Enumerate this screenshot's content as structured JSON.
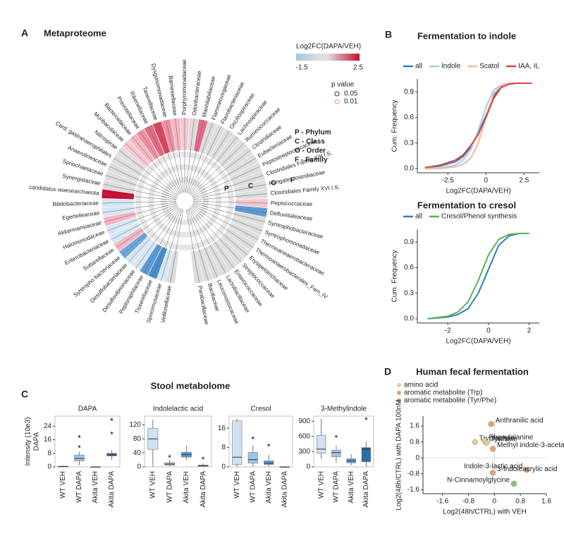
{
  "chart_data": [
    {
      "type": "tree",
      "panel": "A",
      "title": "Metaproteome",
      "families": [
        {
          "name": "Veillonellaceae"
        },
        {
          "name": "Sporomusaceae",
          "color": "#d6e6f5"
        },
        {
          "name": "Tisserellaceae",
          "color": "#4a8ccc"
        },
        {
          "name": "Peptoniphilaceae",
          "color": "#5b9bd5"
        },
        {
          "name": "Desulfovibrionaceae",
          "color": "#d6e6f5"
        },
        {
          "name": "Desulfobacteriaceae",
          "color": "#d6e6f5"
        },
        {
          "name": "Syntropho bacteriaceae",
          "color": "#6fa8dc"
        },
        {
          "name": "Suttarellaceae",
          "color": "#f4b6c2"
        },
        {
          "name": "Enterobacteriaceae",
          "color": "#d6e6f5"
        },
        {
          "name": "Halomonodaceae",
          "color": "#d6e6f5"
        },
        {
          "name": "Akkermansiaceae",
          "color": "#f4b6c2"
        },
        {
          "name": "Egertelleaceae",
          "color": "#d6e6f5"
        },
        {
          "name": "Bilidobacteriaceae",
          "color": "#d6e6f5"
        },
        {
          "name": "candidatus woesearchaeota",
          "color": "#c8102e"
        },
        {
          "name": "Synergistaceae"
        },
        {
          "name": "Spriochaetaceae"
        },
        {
          "name": "Anaerolineaceae"
        },
        {
          "name": "Card. gastranaerophilales"
        },
        {
          "name": "Nitrospirae"
        },
        {
          "name": "Muribaculaceae",
          "color": "#f4c7d0"
        },
        {
          "name": "Bacteroidaceae",
          "color": "#f4b6c2"
        },
        {
          "name": "Prevotellaceae",
          "color": "#ee8fa3"
        },
        {
          "name": "Rikenellaceae",
          "color": "#e06c86"
        },
        {
          "name": "Tanerellaceae",
          "color": "#d9475f"
        },
        {
          "name": "Dysgonomonadaceae",
          "color": "#ee8fa3"
        },
        {
          "name": "Barnesiellaceae",
          "color": "#f4b6c2"
        },
        {
          "name": "Porphyromonadaceae",
          "color": "#f4c7d0"
        },
        {
          "name": "Odoribacteraceae"
        },
        {
          "name": "Marinilabiliaceae",
          "color": "#e06c86"
        },
        {
          "name": "Flammeovirgaceae"
        },
        {
          "name": "Flavobacteriaceae"
        },
        {
          "name": "Oscillospiraceae"
        },
        {
          "name": "Lachnospiraceae"
        },
        {
          "name": "Ruminococcaceae"
        },
        {
          "name": "Clostridiaceae"
        },
        {
          "name": "Eubacteriaceae"
        },
        {
          "name": "Peptostreptococcaceae"
        },
        {
          "name": "Clostridiales Family XIII I.S."
        },
        {
          "name": "Hungateiclostridiaceae"
        },
        {
          "name": "Clostridiales Family XVI I.S."
        },
        {
          "name": "Peptococcaceae",
          "color": "#f4c7d0"
        },
        {
          "name": "Defluviitaleaceae",
          "color": "#5b9bd5"
        },
        {
          "name": "Syntrophobacteraceae"
        },
        {
          "name": "Syntrophomonadaceae"
        },
        {
          "name": "Thermoaneaerobacteraceae"
        },
        {
          "name": "Thermoanaerobacterales_Fam_IV"
        },
        {
          "name": "Erysipelotrichaceae"
        },
        {
          "name": "Streptococcaceae"
        },
        {
          "name": "Enterococcaceae"
        },
        {
          "name": "Lactobacillaceae"
        },
        {
          "name": "Leuconostocaceae"
        },
        {
          "name": "Bacillaceae"
        },
        {
          "name": "Panibacillaceae"
        }
      ],
      "colorbar": {
        "title": "Log2FC(DAPA/VEH)",
        "min": -1.5,
        "max": 2.5
      },
      "pvalue": {
        "title": "p value",
        "levels": [
          0.05,
          0.01
        ],
        "colors": [
          "#333333",
          "#f08aa0"
        ]
      },
      "rank_key": [
        "P - Phylum",
        "C - Class",
        "O - Order",
        "F - Family"
      ],
      "rank_letters": [
        "P",
        "C",
        "O",
        "F"
      ]
    },
    {
      "type": "line",
      "panel": "B",
      "title": "Fermentation to indole",
      "x_label": "Log2FC(DAPA/VEH)",
      "y_label": "Cum. Frequency",
      "x": [
        -4,
        -3,
        -2,
        -1.5,
        -1,
        -0.5,
        0,
        0.5,
        1,
        1.5,
        2,
        3
      ],
      "series": [
        {
          "name": "all",
          "color": "#2f7fc1",
          "values": [
            0.01,
            0.03,
            0.08,
            0.14,
            0.25,
            0.42,
            0.62,
            0.85,
            0.96,
            0.99,
            1,
            1
          ]
        },
        {
          "name": "Indole",
          "color": "#a9cbe8",
          "values": [
            0,
            0.01,
            0.04,
            0.1,
            0.22,
            0.45,
            0.72,
            0.92,
            0.98,
            1,
            1,
            1
          ]
        },
        {
          "name": "Scatol",
          "color": "#f3b7a4",
          "values": [
            0,
            0,
            0.02,
            0.05,
            0.12,
            0.3,
            0.6,
            0.88,
            0.97,
            1,
            1,
            1
          ]
        },
        {
          "name": "IAA, IL",
          "color": "#d9453a",
          "values": [
            0.01,
            0.04,
            0.1,
            0.16,
            0.27,
            0.4,
            0.6,
            0.82,
            0.95,
            0.99,
            1,
            1
          ]
        }
      ],
      "xlim": [
        -4.5,
        3.5
      ],
      "xticks": [
        -2.5,
        0,
        2.5
      ],
      "ylim": [
        -0.05,
        1.05
      ],
      "yticks": [
        {
          "value": 0,
          "label": "0.0"
        },
        0.3,
        0.6,
        0.9
      ]
    },
    {
      "type": "line",
      "title": "Fermentation to cresol",
      "x_label": "Log2FC(DAPA/VEH)",
      "y_label": "Cum. Frequency",
      "x": [
        -3,
        -2,
        -1.5,
        -1,
        -0.5,
        0,
        0.5,
        1,
        1.5,
        2
      ],
      "series": [
        {
          "name": "all",
          "color": "#2f7fc1",
          "values": [
            0,
            0.02,
            0.05,
            0.12,
            0.3,
            0.58,
            0.86,
            0.97,
            1,
            1
          ]
        },
        {
          "name": "Cresol/Phenol synthesis",
          "color": "#59b34d",
          "values": [
            0,
            0.03,
            0.08,
            0.2,
            0.45,
            0.75,
            0.93,
            0.99,
            1,
            1
          ]
        }
      ],
      "xlim": [
        -3.5,
        2.5
      ],
      "xticks": [
        -2,
        0,
        2
      ],
      "ylim": [
        -0.05,
        1.05
      ],
      "yticks": [
        {
          "value": 0,
          "label": "0.0"
        },
        0.3,
        0.6,
        0.9
      ]
    },
    {
      "type": "box",
      "panel": "C",
      "group_title": "Stool metabolome",
      "y_label": [
        "Intensity (10e3)",
        "DAPA"
      ],
      "title": "DAPA",
      "categories": [
        "WT VEH",
        "WT DAPA",
        "Akita VEH",
        "Akita DAPA"
      ],
      "colors": [
        "#cfe2f3",
        "#9ec5e6",
        "#5b9bd5",
        "#2e6da4"
      ],
      "stats": [
        [
          0,
          0,
          0.2,
          0.4,
          0.8
        ],
        [
          1,
          3.5,
          5,
          7,
          9
        ],
        [
          0,
          0,
          0,
          0,
          0
        ],
        [
          4,
          6.5,
          7,
          8,
          10
        ]
      ],
      "outliers": [
        [],
        [
          12,
          18
        ],
        [],
        [
          20,
          28
        ]
      ],
      "ylim": [
        0,
        30
      ],
      "yticks": [
        0,
        8,
        16,
        24
      ]
    },
    {
      "type": "box",
      "title": "Indolelactic acid",
      "categories": [
        "WT VEH",
        "WT DAPA",
        "Akita VEH",
        "Akita DAPA"
      ],
      "colors": [
        "#cfe2f3",
        "#9ec5e6",
        "#5b9bd5",
        "#2e6da4"
      ],
      "stats": [
        [
          0,
          50,
          80,
          110,
          135
        ],
        [
          2,
          5,
          8,
          12,
          20
        ],
        [
          20,
          28,
          35,
          42,
          60
        ],
        [
          0,
          2,
          3,
          5,
          10
        ]
      ],
      "outliers": [
        [],
        [
          30
        ],
        [],
        [
          25
        ]
      ],
      "ylim": [
        0,
        145
      ],
      "yticks": [
        0,
        40,
        80,
        120
      ]
    },
    {
      "type": "box",
      "title": "Cresol",
      "categories": [
        "WT VEH",
        "WT DAPA",
        "Akita VEH",
        "Akita DAPA"
      ],
      "colors": [
        "#cfe2f3",
        "#9ec5e6",
        "#5b9bd5",
        "#2e6da4"
      ],
      "stats": [
        [
          0,
          1,
          4,
          19,
          20
        ],
        [
          0,
          1.5,
          3,
          6,
          9
        ],
        [
          0,
          1,
          1.5,
          2.5,
          5
        ],
        [
          0,
          0,
          0,
          0,
          0
        ]
      ],
      "outliers": [
        [],
        [
          12
        ],
        [
          9
        ],
        []
      ],
      "ylim": [
        0,
        21
      ],
      "yticks": [
        0,
        8,
        16
      ]
    },
    {
      "type": "box",
      "title": "3-Methylindole",
      "categories": [
        "WT VEH",
        "WT DAPA",
        "Akita VEH",
        "Akita DAPA"
      ],
      "colors": [
        "#cfe2f3",
        "#9ec5e6",
        "#5b9bd5",
        "#2e6da4"
      ],
      "stats": [
        [
          150,
          270,
          350,
          620,
          950
        ],
        [
          80,
          200,
          280,
          330,
          420
        ],
        [
          30,
          80,
          120,
          160,
          250
        ],
        [
          0,
          100,
          350,
          380,
          500
        ]
      ],
      "outliers": [
        [],
        [
          600
        ],
        [],
        [
          950
        ]
      ],
      "ylim": [
        0,
        1000
      ],
      "yticks": [
        0,
        300,
        600,
        900
      ]
    },
    {
      "type": "scatter",
      "panel": "D",
      "title": "Human fecal fermentation",
      "x_label": "Log2(48h/CTRL) with VEH",
      "y_label": "Log2(48h/CTRL) with DAPA 100nM",
      "series": [
        {
          "name": "amino acid",
          "color": "#e8c98a",
          "x": [
            -0.6,
            -0.3,
            -0.25
          ],
          "values": [
            0.8,
            0.85,
            0.75
          ],
          "labels": [
            "Tryptophan",
            "Phenylalanine",
            "Tyrosine"
          ]
        },
        {
          "name": "aromatic metabolite (Trp)",
          "color": "#e3a06e",
          "x": [
            -0.1,
            -0.05,
            1.0,
            -0.05
          ],
          "values": [
            1.7,
            0.45,
            -0.6,
            -0.75
          ],
          "labels": [
            "Anthranilic acid",
            "Methyl indole-3-acetate",
            "Indole-3-lactic acid",
            "3-Indoleacrylic acid"
          ]
        },
        {
          "name": "aromatic metabolite (Tyr/Phe)",
          "color": "#8fbf6f",
          "x": [
            0.6
          ],
          "values": [
            -1.3
          ],
          "labels": [
            "N-Cinnamoylglycine"
          ]
        }
      ],
      "xlim": [
        -2.2,
        1.6
      ],
      "xticks": [
        -1.6,
        -0.8,
        0,
        0.8,
        1.6
      ],
      "ylim": [
        -1.8,
        2.1
      ],
      "yticks": [
        -1.6,
        -0.8,
        0,
        0.8,
        1.6
      ]
    }
  ]
}
